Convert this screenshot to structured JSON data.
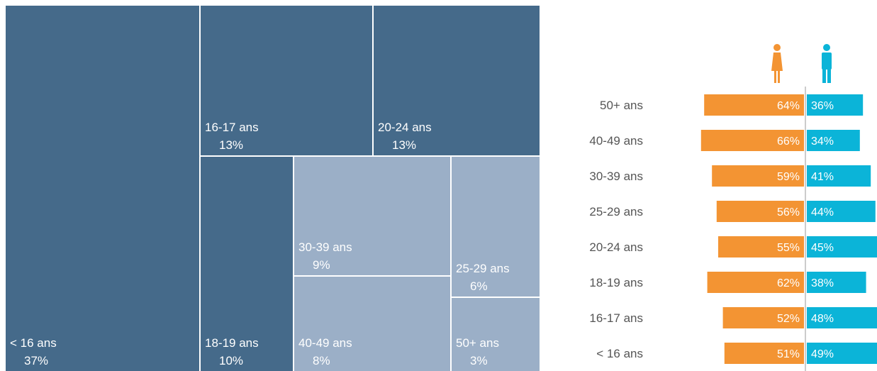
{
  "chart_data": [
    {
      "type": "treemap",
      "items": [
        {
          "label": "< 16 ans",
          "value": "37%",
          "shade": "dark"
        },
        {
          "label": "16-17 ans",
          "value": "13%",
          "shade": "dark"
        },
        {
          "label": "20-24 ans",
          "value": "13%",
          "shade": "dark"
        },
        {
          "label": "18-19 ans",
          "value": "10%",
          "shade": "dark"
        },
        {
          "label": "30-39 ans",
          "value": "9%",
          "shade": "light"
        },
        {
          "label": "25-29 ans",
          "value": "6%",
          "shade": "light"
        },
        {
          "label": "40-49 ans",
          "value": "8%",
          "shade": "light"
        },
        {
          "label": "50+ ans",
          "value": "3%",
          "shade": "light"
        }
      ],
      "colors": {
        "dark": "#456a8a",
        "light": "#9bafc7"
      }
    },
    {
      "type": "bar",
      "orientation": "horizontal-diverging",
      "categories": [
        "50+ ans",
        "40-49 ans",
        "30-39 ans",
        "25-29 ans",
        "20-24 ans",
        "18-19 ans",
        "16-17 ans",
        "< 16 ans"
      ],
      "series": [
        {
          "icon": "female-icon",
          "color": "#f39433",
          "values": [
            64,
            66,
            59,
            56,
            55,
            62,
            52,
            51
          ],
          "labels": [
            "64%",
            "66%",
            "59%",
            "56%",
            "55%",
            "62%",
            "52%",
            "51%"
          ]
        },
        {
          "icon": "male-icon",
          "color": "#0bb4d8",
          "values": [
            36,
            34,
            41,
            44,
            45,
            38,
            48,
            49
          ],
          "labels": [
            "36%",
            "34%",
            "41%",
            "44%",
            "45%",
            "38%",
            "48%",
            "49%"
          ]
        }
      ],
      "axis_color": "#cccccc"
    }
  ]
}
